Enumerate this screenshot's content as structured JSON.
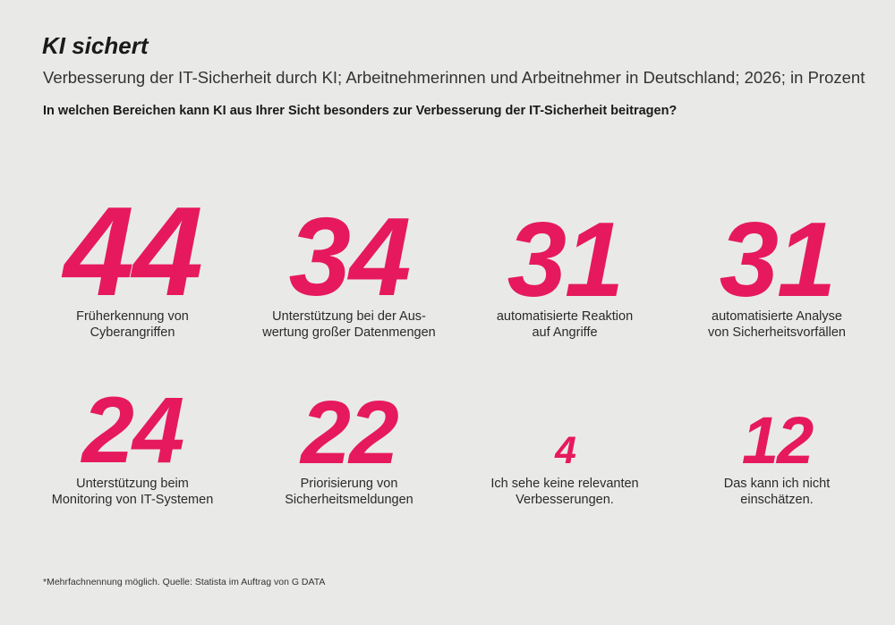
{
  "header": {
    "title": "KI sichert",
    "subtitle": "Verbesserung der IT-Sicherheit durch KI; Arbeitnehmerinnen und Arbeitnehmer in Deutschland; 2026; in Prozent",
    "question": "In welchen Bereichen kann KI aus Ihrer Sicht besonders zur Verbesserung der IT-Sicherheit beitragen?"
  },
  "chart_data": {
    "type": "table",
    "title": "KI sichert",
    "subtitle": "Verbesserung der IT-Sicherheit durch KI; Arbeitnehmerinnen und Arbeitnehmer in Deutschland; 2026; in Prozent",
    "unit": "Prozent",
    "value_color": "#e6195e",
    "items": [
      {
        "value": 44,
        "label": "Früherkennung von\nCyberangriffen"
      },
      {
        "value": 34,
        "label": "Unterstützung bei der Aus-\nwertung großer Datenmengen"
      },
      {
        "value": 31,
        "label": "automatisierte Reaktion\nauf Angriffe"
      },
      {
        "value": 31,
        "label": "automatisierte Analyse\nvon Sicherheitsvorfällen"
      },
      {
        "value": 24,
        "label": "Unterstützung beim\nMonitoring von IT-Systemen"
      },
      {
        "value": 22,
        "label": "Priorisierung von\nSicherheitsmeldungen"
      },
      {
        "value": 4,
        "label": "Ich sehe keine relevanten\nVerbesserungen."
      },
      {
        "value": 12,
        "label": "Das kann ich nicht\neinschätzen."
      }
    ]
  },
  "footer": {
    "note": "*Mehrfachnennung möglich. Quelle: Statista im Auftrag von G DATA"
  }
}
